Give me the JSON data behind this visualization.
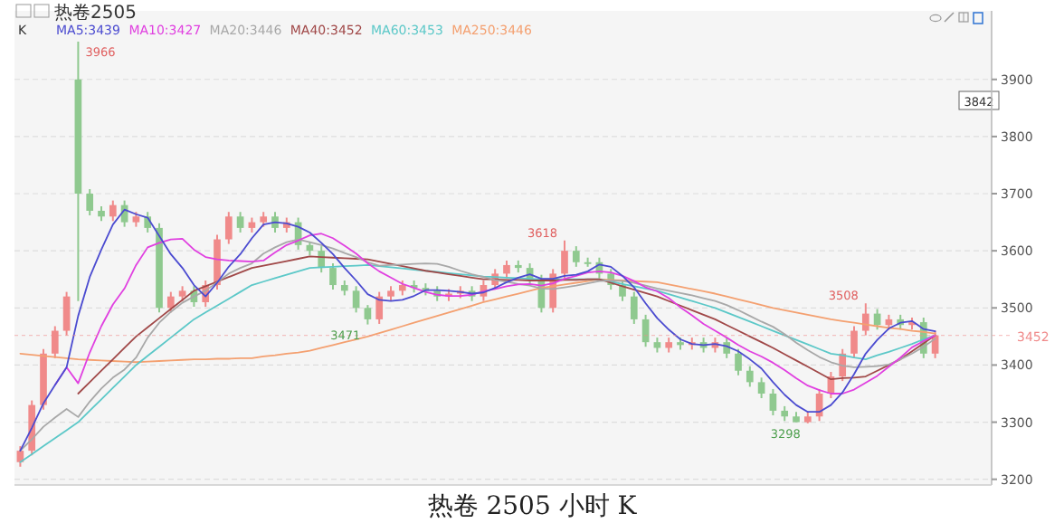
{
  "chart_data": {
    "type": "candlestick",
    "title": "热卷 2505 小时 K",
    "subtitle": "热卷2505",
    "legend_title": "K",
    "legend": "top",
    "grid": "y",
    "categories": [
      null,
      null,
      null,
      null,
      null,
      null,
      null,
      null,
      null,
      null,
      null,
      null,
      null,
      null,
      null,
      null,
      null,
      null,
      null,
      null,
      null,
      null,
      null,
      null,
      null,
      null,
      null,
      null,
      null,
      null,
      null,
      null,
      null,
      null,
      null,
      null,
      null,
      null,
      null,
      null,
      null,
      null,
      null,
      null,
      null,
      null,
      null,
      null,
      null,
      null,
      null,
      null,
      null,
      null,
      null,
      null,
      null,
      null,
      null,
      null,
      null,
      null,
      null,
      null,
      null,
      null,
      null,
      null,
      null,
      null,
      null,
      null,
      null,
      null,
      null,
      null,
      null,
      null,
      null,
      null
    ],
    "ohlc": [
      [
        3230,
        3258,
        3222,
        3250
      ],
      [
        3250,
        3338,
        3242,
        3330
      ],
      [
        3330,
        3428,
        3322,
        3420
      ],
      [
        3420,
        3468,
        3412,
        3460
      ],
      [
        3460,
        3528,
        3452,
        3520
      ],
      [
        3900,
        3966,
        3512,
        3700
      ],
      [
        3700,
        3708,
        3662,
        3670
      ],
      [
        3670,
        3678,
        3652,
        3660
      ],
      [
        3660,
        3688,
        3652,
        3680
      ],
      [
        3680,
        3688,
        3642,
        3650
      ],
      [
        3650,
        3668,
        3642,
        3660
      ],
      [
        3660,
        3668,
        3632,
        3640
      ],
      [
        3640,
        3648,
        3492,
        3500
      ],
      [
        3500,
        3528,
        3492,
        3520
      ],
      [
        3520,
        3538,
        3512,
        3530
      ],
      [
        3530,
        3538,
        3502,
        3510
      ],
      [
        3510,
        3548,
        3502,
        3540
      ],
      [
        3540,
        3628,
        3532,
        3620
      ],
      [
        3620,
        3668,
        3612,
        3660
      ],
      [
        3660,
        3668,
        3632,
        3640
      ],
      [
        3640,
        3658,
        3632,
        3650
      ],
      [
        3650,
        3668,
        3642,
        3660
      ],
      [
        3660,
        3668,
        3632,
        3640
      ],
      [
        3640,
        3658,
        3632,
        3650
      ],
      [
        3650,
        3658,
        3602,
        3610
      ],
      [
        3610,
        3616,
        3592,
        3600
      ],
      [
        3600,
        3608,
        3562,
        3570
      ],
      [
        3570,
        3578,
        3532,
        3540
      ],
      [
        3540,
        3548,
        3522,
        3530
      ],
      [
        3530,
        3538,
        3492,
        3500
      ],
      [
        3500,
        3505,
        3471,
        3480
      ],
      [
        3480,
        3528,
        3472,
        3520
      ],
      [
        3520,
        3538,
        3512,
        3530
      ],
      [
        3530,
        3548,
        3522,
        3540
      ],
      [
        3540,
        3548,
        3527,
        3535
      ],
      [
        3535,
        3543,
        3522,
        3530
      ],
      [
        3530,
        3538,
        3512,
        3520
      ],
      [
        3520,
        3533,
        3512,
        3525
      ],
      [
        3525,
        3538,
        3517,
        3530
      ],
      [
        3530,
        3538,
        3512,
        3520
      ],
      [
        3520,
        3548,
        3512,
        3540
      ],
      [
        3540,
        3568,
        3532,
        3560
      ],
      [
        3560,
        3583,
        3552,
        3575
      ],
      [
        3575,
        3583,
        3562,
        3570
      ],
      [
        3570,
        3578,
        3542,
        3550
      ],
      [
        3550,
        3558,
        3492,
        3500
      ],
      [
        3500,
        3568,
        3492,
        3560
      ],
      [
        3560,
        3618,
        3552,
        3600
      ],
      [
        3600,
        3608,
        3572,
        3580
      ],
      [
        3580,
        3588,
        3572,
        3580
      ],
      [
        3580,
        3588,
        3552,
        3560
      ],
      [
        3560,
        3568,
        3532,
        3540
      ],
      [
        3540,
        3548,
        3512,
        3520
      ],
      [
        3520,
        3528,
        3472,
        3480
      ],
      [
        3480,
        3488,
        3432,
        3440
      ],
      [
        3440,
        3448,
        3422,
        3430
      ],
      [
        3430,
        3448,
        3422,
        3440
      ],
      [
        3440,
        3448,
        3427,
        3435
      ],
      [
        3435,
        3448,
        3427,
        3440
      ],
      [
        3440,
        3448,
        3422,
        3430
      ],
      [
        3430,
        3448,
        3422,
        3440
      ],
      [
        3440,
        3448,
        3412,
        3420
      ],
      [
        3420,
        3428,
        3382,
        3390
      ],
      [
        3390,
        3398,
        3362,
        3370
      ],
      [
        3370,
        3378,
        3342,
        3350
      ],
      [
        3350,
        3358,
        3312,
        3320
      ],
      [
        3320,
        3328,
        3302,
        3310
      ],
      [
        3310,
        3318,
        3300,
        3300
      ],
      [
        3300,
        3318,
        3298,
        3310
      ],
      [
        3310,
        3358,
        3302,
        3350
      ],
      [
        3350,
        3388,
        3342,
        3380
      ],
      [
        3380,
        3428,
        3372,
        3420
      ],
      [
        3420,
        3468,
        3412,
        3460
      ],
      [
        3460,
        3508,
        3452,
        3490
      ],
      [
        3490,
        3498,
        3462,
        3470
      ],
      [
        3470,
        3488,
        3462,
        3480
      ],
      [
        3480,
        3488,
        3462,
        3470
      ],
      [
        3470,
        3483,
        3462,
        3475
      ],
      [
        3475,
        3483,
        3412,
        3420
      ],
      [
        3420,
        3460,
        3412,
        3452
      ]
    ],
    "colors": [
      "#f08a8a",
      "#f08a8a",
      "#f08a8a",
      "#f08a8a",
      "#f08a8a",
      "#8fc98f",
      "#8fc98f",
      "#8fc98f",
      "#f08a8a",
      "#8fc98f",
      "#f08a8a",
      "#8fc98f",
      "#8fc98f",
      "#f08a8a",
      "#f08a8a",
      "#8fc98f",
      "#f08a8a",
      "#f08a8a",
      "#f08a8a",
      "#8fc98f",
      "#f08a8a",
      "#f08a8a",
      "#8fc98f",
      "#f08a8a",
      "#8fc98f",
      "#8fc98f",
      "#8fc98f",
      "#8fc98f",
      "#8fc98f",
      "#8fc98f",
      "#8fc98f",
      "#f08a8a",
      "#f08a8a",
      "#f08a8a",
      "#8fc98f",
      "#8fc98f",
      "#8fc98f",
      "#f08a8a",
      "#f08a8a",
      "#8fc98f",
      "#f08a8a",
      "#f08a8a",
      "#f08a8a",
      "#8fc98f",
      "#8fc98f",
      "#8fc98f",
      "#f08a8a",
      "#f08a8a",
      "#8fc98f",
      "#8fc98f",
      "#8fc98f",
      "#8fc98f",
      "#8fc98f",
      "#8fc98f",
      "#8fc98f",
      "#8fc98f",
      "#f08a8a",
      "#8fc98f",
      "#f08a8a",
      "#8fc98f",
      "#f08a8a",
      "#8fc98f",
      "#8fc98f",
      "#8fc98f",
      "#8fc98f",
      "#8fc98f",
      "#8fc98f",
      "#8fc98f",
      "#f08a8a",
      "#f08a8a",
      "#f08a8a",
      "#f08a8a",
      "#f08a8a",
      "#f08a8a",
      "#8fc98f",
      "#f08a8a",
      "#8fc98f",
      "#f08a8a",
      "#8fc98f",
      "#f08a8a"
    ],
    "series": [
      {
        "name": "MA5:3439",
        "type": "line",
        "color": "#4b4bd0",
        "values": [
          3250,
          3290,
          3333,
          3365,
          3396,
          3486,
          3554,
          3602,
          3646,
          3672,
          3664,
          3658,
          3626,
          3594,
          3570,
          3540,
          3520,
          3544,
          3572,
          3594,
          3622,
          3646,
          3650,
          3648,
          3642,
          3632,
          3614,
          3594,
          3570,
          3548,
          3524,
          3514,
          3512,
          3514,
          3521,
          3531,
          3531,
          3530,
          3528,
          3525,
          3527,
          3535,
          3545,
          3553,
          3559,
          3551,
          3551,
          3556,
          3558,
          3564,
          3576,
          3572,
          3556,
          3536,
          3508,
          3482,
          3462,
          3445,
          3437,
          3435,
          3437,
          3433,
          3424,
          3410,
          3394,
          3370,
          3348,
          3330,
          3318,
          3318,
          3330,
          3352,
          3384,
          3420,
          3444,
          3464,
          3474,
          3477,
          3463,
          3459
        ]
      },
      {
        "name": "MA10:3427",
        "type": "line",
        "color": "#e040e0",
        "values": [
          null,
          null,
          null,
          3365,
          3396,
          3368,
          3422,
          3468,
          3506,
          3534,
          3575,
          3606,
          3614,
          3620,
          3621,
          3602,
          3589,
          3585,
          3583,
          3582,
          3581,
          3583,
          3597,
          3610,
          3618,
          3627,
          3630,
          3622,
          3609,
          3595,
          3578,
          3564,
          3553,
          3542,
          3535,
          3528,
          3523,
          3521,
          3521,
          3523,
          3529,
          3533,
          3538,
          3541,
          3542,
          3539,
          3543,
          3551,
          3556,
          3562,
          3564,
          3562,
          3556,
          3547,
          3536,
          3529,
          3517,
          3501,
          3487,
          3472,
          3460,
          3448,
          3435,
          3424,
          3415,
          3404,
          3391,
          3377,
          3364,
          3356,
          3350,
          3350,
          3357,
          3369,
          3381,
          3397,
          3413,
          3431,
          3442,
          3452
        ]
      },
      {
        "name": "MA20:3446",
        "type": "line",
        "color": "#a8a8a8",
        "values": [
          3250,
          3270,
          3292,
          3308,
          3323,
          3309,
          3336,
          3359,
          3378,
          3392,
          3413,
          3448,
          3474,
          3493,
          3509,
          3520,
          3530,
          3545,
          3560,
          3570,
          3578,
          3595,
          3606,
          3615,
          3620,
          3615,
          3610,
          3604,
          3596,
          3589,
          3580,
          3574,
          3575,
          3576,
          3577,
          3578,
          3577,
          3572,
          3565,
          3559,
          3554,
          3549,
          3546,
          3542,
          3539,
          3534,
          3533,
          3536,
          3539,
          3543,
          3547,
          3548,
          3547,
          3544,
          3539,
          3534,
          3530,
          3526,
          3522,
          3517,
          3512,
          3505,
          3496,
          3486,
          3476,
          3467,
          3454,
          3439,
          3426,
          3414,
          3405,
          3399,
          3396,
          3397,
          3398,
          3401,
          3410,
          3420,
          3432,
          3446
        ]
      },
      {
        "name": "MA40:3452",
        "type": "line",
        "color": "#a04848",
        "values": [
          null,
          null,
          null,
          null,
          null,
          3350,
          3370,
          3390,
          3410,
          3430,
          3450,
          3466,
          3482,
          3498,
          3514,
          3530,
          3538,
          3546,
          3554,
          3562,
          3570,
          3574,
          3578,
          3582,
          3586,
          3590,
          3589,
          3588,
          3587,
          3586,
          3585,
          3581,
          3577,
          3573,
          3569,
          3565,
          3562,
          3559,
          3556,
          3553,
          3550,
          3550,
          3549,
          3549,
          3548,
          3548,
          3548,
          3549,
          3549,
          3550,
          3550,
          3544,
          3538,
          3532,
          3526,
          3520,
          3512,
          3504,
          3496,
          3488,
          3480,
          3470,
          3460,
          3450,
          3440,
          3430,
          3419,
          3408,
          3397,
          3386,
          3375,
          3377,
          3378,
          3380,
          3390,
          3400,
          3410,
          3424,
          3438,
          3452
        ]
      },
      {
        "name": "MA60:3453",
        "type": "line",
        "color": "#5cc8c8",
        "values": [
          3230,
          3244,
          3258,
          3272,
          3286,
          3300,
          3320,
          3340,
          3360,
          3380,
          3400,
          3416,
          3432,
          3448,
          3464,
          3480,
          3492,
          3504,
          3516,
          3528,
          3540,
          3546,
          3552,
          3558,
          3564,
          3570,
          3571,
          3572,
          3573,
          3574,
          3575,
          3573,
          3571,
          3569,
          3567,
          3565,
          3563,
          3561,
          3559,
          3557,
          3555,
          3554,
          3553,
          3552,
          3551,
          3550,
          3550,
          3550,
          3550,
          3550,
          3550,
          3546,
          3542,
          3538,
          3534,
          3530,
          3524,
          3518,
          3512,
          3506,
          3500,
          3492,
          3484,
          3476,
          3468,
          3460,
          3452,
          3444,
          3436,
          3428,
          3420,
          3417,
          3413,
          3410,
          3417,
          3423,
          3430,
          3437,
          3445,
          3452
        ]
      },
      {
        "name": "MA250:3446",
        "type": "line",
        "color": "#f4a070",
        "values": [
          3420,
          3418,
          3416,
          3414,
          3412,
          3410,
          3409,
          3408,
          3407,
          3406,
          3405,
          3406,
          3407,
          3408,
          3409,
          3410,
          3410,
          3411,
          3411,
          3412,
          3412,
          3415,
          3417,
          3420,
          3422,
          3425,
          3430,
          3435,
          3440,
          3445,
          3450,
          3456,
          3462,
          3468,
          3474,
          3480,
          3486,
          3492,
          3498,
          3504,
          3510,
          3515,
          3520,
          3525,
          3530,
          3535,
          3538,
          3541,
          3544,
          3547,
          3550,
          3549,
          3548,
          3547,
          3546,
          3545,
          3541,
          3537,
          3533,
          3529,
          3525,
          3520,
          3515,
          3510,
          3505,
          3500,
          3496,
          3492,
          3488,
          3484,
          3480,
          3477,
          3474,
          3471,
          3468,
          3465,
          3463,
          3460,
          3458,
          3455
        ]
      }
    ],
    "ylim": [
      3190,
      4020
    ],
    "yticks": [
      3200,
      3300,
      3400,
      3500,
      3600,
      3700,
      3800,
      3900
    ],
    "ref_lines": [
      {
        "axis": "y",
        "value": 3452,
        "label": "3452",
        "color": "#f08a8a",
        "line_style": "dotted"
      }
    ],
    "annotations": [
      "3966",
      "3618",
      "3508",
      "3471",
      "3298",
      "3842"
    ]
  }
}
